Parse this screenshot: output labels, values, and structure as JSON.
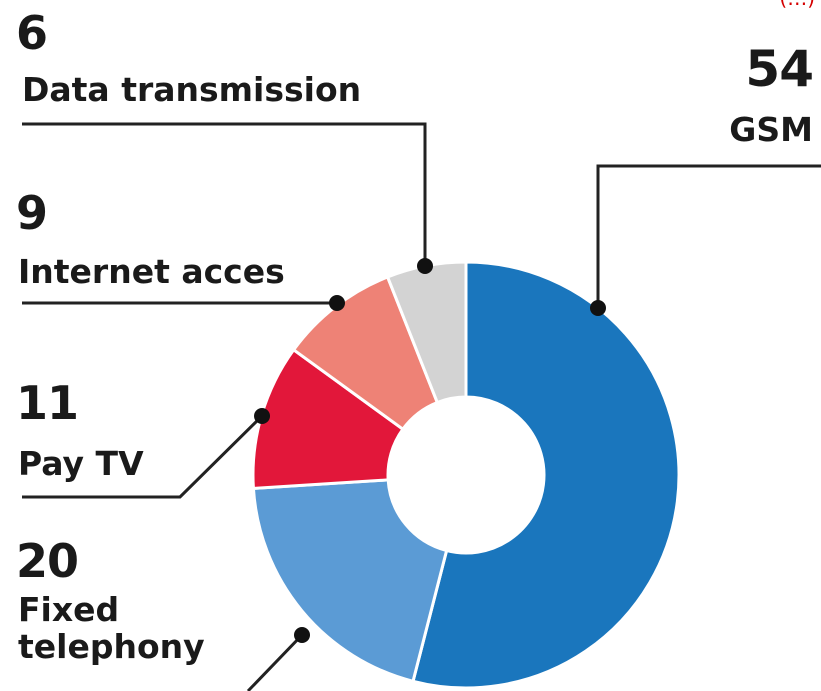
{
  "chart_data": {
    "type": "pie",
    "style": "donut",
    "categories": [
      "GSM",
      "Fixed telephony",
      "Pay TV",
      "Internet acces",
      "Data transmission"
    ],
    "values": [
      54,
      20,
      11,
      9,
      6
    ],
    "value_labels": [
      "54",
      "20",
      "11",
      "9",
      "6"
    ],
    "category_labels": [
      "GSM",
      "Fixed\ntelephony",
      "Pay TV",
      "Internet acces",
      "Data transmission"
    ],
    "colors": [
      "#1a76bd",
      "#5b9bd5",
      "#e2173a",
      "#ee8276",
      "#d3d3d3"
    ],
    "start_angle": "12 o'clock",
    "direction": "clockwise",
    "title": "",
    "legend": "callout labels"
  },
  "corner_text": "(…)"
}
